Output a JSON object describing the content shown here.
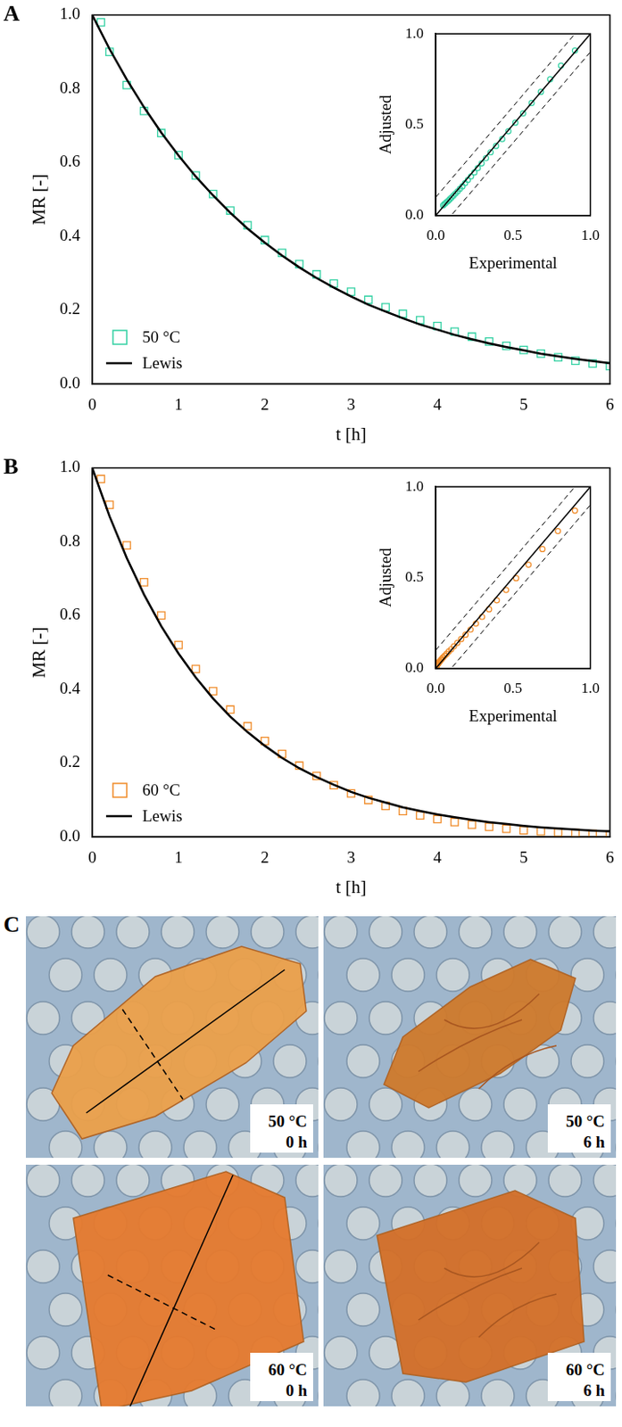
{
  "chart_data": [
    {
      "panel": "A",
      "type": "scatter",
      "x_label": "t [h]",
      "y_label": "MR [-]",
      "xlim": [
        0,
        6
      ],
      "ylim": [
        0,
        1
      ],
      "xticks": [
        0,
        1,
        2,
        3,
        4,
        5,
        6
      ],
      "yticks": [
        {
          "value": 0,
          "label": "0.0"
        },
        {
          "value": 0.2,
          "label": "0.2"
        },
        {
          "value": 0.4,
          "label": "0.4"
        },
        {
          "value": 0.6,
          "label": "0.6"
        },
        {
          "value": 0.8,
          "label": "0.8"
        },
        {
          "value": 1,
          "label": "1.0"
        }
      ],
      "grid": false,
      "legend": "lower left",
      "series": [
        {
          "name": "50 °C",
          "type": "scatter",
          "marker": "square",
          "color": "#33d1a3",
          "x": [
            0.1,
            0.2,
            0.4,
            0.6,
            0.8,
            1.0,
            1.2,
            1.4,
            1.6,
            1.8,
            2.0,
            2.2,
            2.4,
            2.6,
            2.8,
            3.0,
            3.2,
            3.4,
            3.6,
            3.8,
            4.0,
            4.2,
            4.4,
            4.6,
            4.8,
            5.0,
            5.2,
            5.4,
            5.6,
            5.8,
            6.0
          ],
          "values": [
            0.98,
            0.9,
            0.81,
            0.74,
            0.68,
            0.62,
            0.565,
            0.515,
            0.47,
            0.43,
            0.39,
            0.355,
            0.325,
            0.297,
            0.272,
            0.25,
            0.228,
            0.208,
            0.19,
            0.173,
            0.157,
            0.142,
            0.128,
            0.115,
            0.103,
            0.092,
            0.082,
            0.072,
            0.063,
            0.055,
            0.048
          ]
        },
        {
          "name": "Lewis",
          "type": "line",
          "line_style": "solid",
          "color": "#000000",
          "x": [
            0,
            0.2,
            0.4,
            0.6,
            0.8,
            1.0,
            1.2,
            1.4,
            1.6,
            1.8,
            2.0,
            2.2,
            2.4,
            2.6,
            2.8,
            3.0,
            3.2,
            3.4,
            3.6,
            3.8,
            4.0,
            4.2,
            4.4,
            4.6,
            4.8,
            5.0,
            5.2,
            5.4,
            5.6,
            5.8,
            6.0
          ],
          "values": [
            1,
            0.908,
            0.825,
            0.75,
            0.681,
            0.619,
            0.562,
            0.511,
            0.464,
            0.421,
            0.383,
            0.348,
            0.316,
            0.287,
            0.261,
            0.237,
            0.215,
            0.196,
            0.178,
            0.161,
            0.147,
            0.133,
            0.121,
            0.11,
            0.1,
            0.091,
            0.082,
            0.075,
            0.068,
            0.062,
            0.056
          ]
        }
      ],
      "inset": {
        "type": "scatter",
        "x_label": "Experimental",
        "y_label": "Adjusted",
        "x_series": "50 °C",
        "y_series": "Lewis",
        "xlim": [
          0,
          1
        ],
        "ylim": [
          0,
          1
        ],
        "xticks": [
          {
            "value": 0,
            "label": "0.0"
          },
          {
            "value": 0.5,
            "label": "0.5"
          },
          {
            "value": 1,
            "label": "1.0"
          }
        ],
        "yticks": [
          {
            "value": 0,
            "label": "0.0"
          },
          {
            "value": 0.5,
            "label": "0.5"
          },
          {
            "value": 1,
            "label": "1.0"
          }
        ],
        "reference_lines": [
          {
            "offset": 0,
            "line_style": "solid"
          },
          {
            "offset": 0.1,
            "line_style": "dashed"
          },
          {
            "offset": -0.1,
            "line_style": "dashed"
          }
        ]
      }
    },
    {
      "panel": "B",
      "type": "scatter",
      "x_label": "t [h]",
      "y_label": "MR [-]",
      "xlim": [
        0,
        6
      ],
      "ylim": [
        0,
        1
      ],
      "xticks": [
        0,
        1,
        2,
        3,
        4,
        5,
        6
      ],
      "yticks": [
        {
          "value": 0,
          "label": "0.0"
        },
        {
          "value": 0.2,
          "label": "0.2"
        },
        {
          "value": 0.4,
          "label": "0.4"
        },
        {
          "value": 0.6,
          "label": "0.6"
        },
        {
          "value": 0.8,
          "label": "0.8"
        },
        {
          "value": 1,
          "label": "1.0"
        }
      ],
      "grid": false,
      "legend": "lower left",
      "series": [
        {
          "name": "60 °C",
          "type": "scatter",
          "marker": "square",
          "color": "#f08c2a",
          "x": [
            0.1,
            0.2,
            0.4,
            0.6,
            0.8,
            1.0,
            1.2,
            1.4,
            1.6,
            1.8,
            2.0,
            2.2,
            2.4,
            2.6,
            2.8,
            3.0,
            3.2,
            3.4,
            3.6,
            3.8,
            4.0,
            4.2,
            4.4,
            4.6,
            4.8,
            5.0,
            5.2,
            5.4,
            5.6,
            5.8,
            6.0
          ],
          "values": [
            0.97,
            0.9,
            0.79,
            0.69,
            0.6,
            0.52,
            0.455,
            0.395,
            0.345,
            0.3,
            0.26,
            0.225,
            0.193,
            0.165,
            0.14,
            0.118,
            0.1,
            0.084,
            0.07,
            0.058,
            0.048,
            0.04,
            0.033,
            0.027,
            0.022,
            0.018,
            0.015,
            0.012,
            0.01,
            0.008,
            0.006
          ]
        },
        {
          "name": "Lewis",
          "type": "line",
          "line_style": "solid",
          "color": "#000000",
          "x": [
            0,
            0.2,
            0.4,
            0.6,
            0.8,
            1.0,
            1.2,
            1.4,
            1.6,
            1.8,
            2.0,
            2.2,
            2.4,
            2.6,
            2.8,
            3.0,
            3.2,
            3.4,
            3.6,
            3.8,
            4.0,
            4.2,
            4.4,
            4.6,
            4.8,
            5.0,
            5.2,
            5.4,
            5.6,
            5.8,
            6.0
          ],
          "values": [
            1,
            0.869,
            0.756,
            0.657,
            0.571,
            0.497,
            0.432,
            0.375,
            0.326,
            0.284,
            0.247,
            0.214,
            0.186,
            0.162,
            0.141,
            0.122,
            0.106,
            0.093,
            0.08,
            0.07,
            0.061,
            0.053,
            0.046,
            0.04,
            0.035,
            0.03,
            0.026,
            0.023,
            0.02,
            0.017,
            0.015
          ]
        }
      ],
      "inset": {
        "type": "scatter",
        "x_label": "Experimental",
        "y_label": "Adjusted",
        "x_series": "60 °C",
        "y_series": "Lewis",
        "xlim": [
          0,
          1
        ],
        "ylim": [
          0,
          1
        ],
        "xticks": [
          {
            "value": 0,
            "label": "0.0"
          },
          {
            "value": 0.5,
            "label": "0.5"
          },
          {
            "value": 1,
            "label": "1.0"
          }
        ],
        "yticks": [
          {
            "value": 0,
            "label": "0.0"
          },
          {
            "value": 0.5,
            "label": "0.5"
          },
          {
            "value": 1,
            "label": "1.0"
          }
        ],
        "reference_lines": [
          {
            "offset": 0,
            "line_style": "solid"
          },
          {
            "offset": 0.1,
            "line_style": "dashed"
          },
          {
            "offset": -0.1,
            "line_style": "dashed"
          }
        ]
      }
    }
  ],
  "photos": {
    "panel": "C",
    "images": [
      {
        "temperature": "50 °C",
        "time": "0 h"
      },
      {
        "temperature": "50 °C",
        "time": "6 h"
      },
      {
        "temperature": "60 °C",
        "time": "0 h"
      },
      {
        "temperature": "60 °C",
        "time": "6 h"
      }
    ]
  }
}
